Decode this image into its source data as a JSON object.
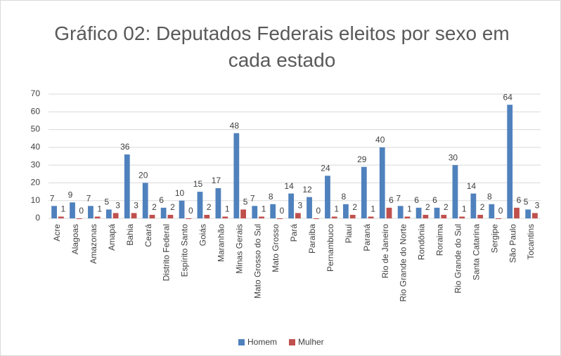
{
  "chart_data": {
    "type": "bar",
    "title": "Gráfico 02: Deputados Federais eleitos por sexo em cada estado",
    "categories": [
      "Acre",
      "Alagoas",
      "Amazonas",
      "Amapá",
      "Bahia",
      "Ceará",
      "Distrito Federal",
      "Espírito Santo",
      "Goiás",
      "Maranhão",
      "Minas Gerais",
      "Mato Grosso do Sul",
      "Mato Grosso",
      "Pará",
      "Paraíba",
      "Pernambuco",
      "Piauí",
      "Paraná",
      "Rio de Janeiro",
      "Rio Grande do Norte",
      "Rondônia",
      "Roraima",
      "Rio Grande do Sul",
      "Santa Catarina",
      "Sergipe",
      "São Paulo",
      "Tocantins"
    ],
    "series": [
      {
        "name": "Homem",
        "color": "#4f81bd",
        "values": [
          7,
          9,
          7,
          5,
          36,
          20,
          6,
          10,
          15,
          17,
          48,
          7,
          8,
          14,
          12,
          24,
          8,
          29,
          40,
          7,
          6,
          6,
          30,
          14,
          8,
          64,
          5
        ]
      },
      {
        "name": "Mulher",
        "color": "#c0504d",
        "values": [
          1,
          0,
          1,
          3,
          3,
          2,
          2,
          0,
          2,
          1,
          5,
          1,
          0,
          3,
          0,
          1,
          2,
          1,
          6,
          1,
          2,
          2,
          1,
          2,
          0,
          6,
          3
        ]
      }
    ],
    "ylim": [
      0,
      70
    ],
    "yticks": [
      0,
      10,
      20,
      30,
      40,
      50,
      60,
      70
    ],
    "grid": true,
    "legend": "bottom"
  }
}
